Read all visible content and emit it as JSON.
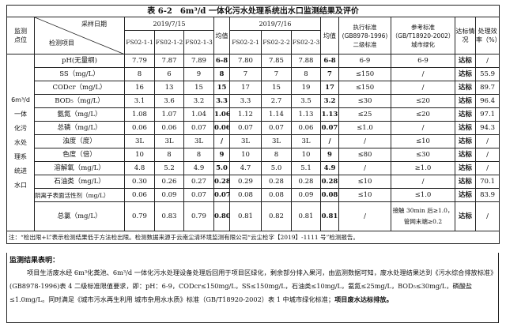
{
  "title": "表 6-2　6m³/d 一体化污水处理系统出水口监测结果及评价",
  "header": {
    "point": "监测点位",
    "date_label": "采样日期",
    "item_label": "检测项目",
    "date1": "2019/7/15",
    "date2": "2019/7/16",
    "samples1": [
      "FS02-1-1",
      "FS02-1-2",
      "FS02-1-3"
    ],
    "samples2": [
      "FS02-2-1",
      "FS02-2-2",
      "FS02-2-3"
    ],
    "mean": "均值",
    "std1": "执行标准\n(GB8978-1996)\n二级标准",
    "std2": "参考标准\n（GB/T18920-2002）\n城市绿化",
    "status": "达标情况",
    "eff": "处理效率（%）"
  },
  "site": "6m³/d\n一体\n化污\n水处\n理系\n统进\n水口",
  "rows": [
    [
      "pH(无量纲)",
      "7.79",
      "7.87",
      "7.89",
      "6-8",
      "7.80",
      "7.85",
      "7.88",
      "6-8",
      "6-9",
      "6-9",
      "达标",
      "/"
    ],
    [
      "SS（mg/L）",
      "8",
      "6",
      "9",
      "8",
      "7",
      "7",
      "8",
      "7",
      "≤150",
      "/",
      "达标",
      "55.9"
    ],
    [
      "CODcr（mg/L）",
      "16",
      "13",
      "15",
      "15",
      "17",
      "15",
      "19",
      "17",
      "≤150",
      "/",
      "达标",
      "89.7"
    ],
    [
      "BOD₅（mg/L）",
      "3.1",
      "3.6",
      "3.2",
      "3.3",
      "3.3",
      "2.7",
      "3.5",
      "3.2",
      "≤30",
      "≤20",
      "达标",
      "96.4"
    ],
    [
      "氨氮（mg/L）",
      "1.08",
      "1.07",
      "1.04",
      "1.06",
      "1.12",
      "1.14",
      "1.13",
      "1.13",
      "≤25",
      "≤20",
      "达标",
      "97.1"
    ],
    [
      "总磷（mg/L）",
      "0.06",
      "0.06",
      "0.07",
      "0.06",
      "0.07",
      "0.07",
      "0.06",
      "0.07",
      "≤1.0",
      "/",
      "达标",
      "94.3"
    ],
    [
      "浊度（度）",
      "3L",
      "3L",
      "3L",
      "/",
      "3L",
      "3L",
      "3L",
      "/",
      "/",
      "≤10",
      "达标",
      "/"
    ],
    [
      "色度（倍）",
      "10",
      "8",
      "8",
      "9",
      "10",
      "8",
      "10",
      "9",
      "≤80",
      "≤30",
      "达标",
      "/"
    ],
    [
      "溶解氧（mg/L）",
      "4.8",
      "5.2",
      "4.9",
      "5.0",
      "4.7",
      "5.0",
      "5.1",
      "4.9",
      "/",
      "≥1.0",
      "达标",
      "/"
    ],
    [
      "石油类（mg/L）",
      "0.30",
      "0.26",
      "0.27",
      "0.28",
      "0.29",
      "0.28",
      "0.28",
      "0.28",
      "≤10",
      "/",
      "达标",
      "70.1"
    ],
    [
      "阴离子表面活性剂（mg/L）",
      "0.06",
      "0.09",
      "0.07",
      "0.07",
      "0.08",
      "0.08",
      "0.09",
      "0.08",
      "≤10",
      "≤1.0",
      "达标",
      "83.9"
    ],
    [
      "总氯（mg/L）",
      "0.79",
      "0.83",
      "0.79",
      "0.80",
      "0.81",
      "0.82",
      "0.81",
      "0.81",
      "/",
      "接触 30min 后≥1.0，\n管网末端≥0.2",
      "达标",
      "/"
    ]
  ],
  "note": "注：“检出限+L”表示检测结果低于方法检出限。检测数据来源于云南尘清环境监测有限公司“云尘检字【2019】-1111 号”检测报告。",
  "summary": {
    "heading": "监测结果表明：",
    "body": "项目生活废水经 6m³化粪池、6m³/d 一体化污水处理设备处理后回用于项目区绿化，剩余部分排入果河，由监测数据可知，废水处理结果达到《污水综合排放标准》(GB8978-1996)表 4 二级标准限值要求，即：pH：6-9，CODcr≤150mg/L，SS≤150mg/L，石油类≤10mg/L，氨氮≤25mg/L，BOD₅≤30mg/L，磷酸盐≤1.0mg/L。同时满足《城市污水再生利用 城市杂用水水质》标准（GB/T18920-2002）表 1 中城市绿化标准；",
    "conclusion": "项目废水达标排放。"
  }
}
